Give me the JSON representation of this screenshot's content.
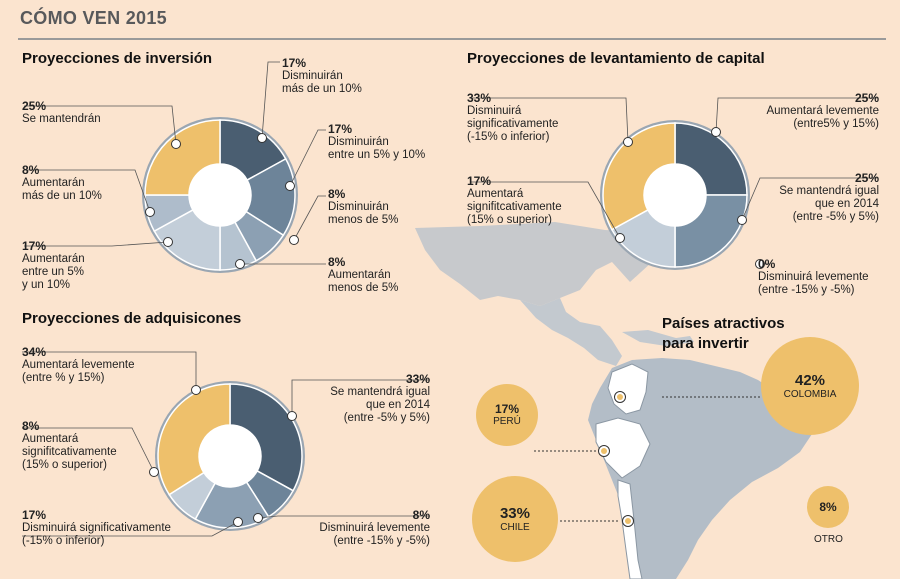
{
  "header": {
    "title": "CÓMO VEN 2015"
  },
  "colors": {
    "background": "#fbe4cf",
    "yellow": "#eec06b",
    "dark": "#4a5e71",
    "mid": "#7990a4",
    "light": "#c3ced9",
    "map": "#b3bdc7"
  },
  "chart_data": [
    {
      "type": "pie",
      "title": "Proyecciones de inversión",
      "slices": [
        {
          "value": 17,
          "pct_label": "17%",
          "label": "Disminuirán\nmás de un 10%",
          "color": "#4a5e71"
        },
        {
          "value": 17,
          "pct_label": "17%",
          "label": "Disminuirán\nentre un 5% y 10%",
          "color": "#6d8499"
        },
        {
          "value": 8,
          "pct_label": "8%",
          "label": "Disminuirán\nmenos de 5%",
          "color": "#8ca0b3"
        },
        {
          "value": 8,
          "pct_label": "8%",
          "label": "Aumentarán\nmenos de 5%",
          "color": "#b5c3d0"
        },
        {
          "value": 17,
          "pct_label": "17%",
          "label": "Aumentarán\nentre un 5%\ny un 10%",
          "color": "#c3ced9"
        },
        {
          "value": 8,
          "pct_label": "8%",
          "label": "Aumentarán\nmás de un 10%",
          "color": "#aebccb"
        },
        {
          "value": 25,
          "pct_label": "25%",
          "label": "Se mantendrán",
          "color": "#eec06b"
        }
      ]
    },
    {
      "type": "pie",
      "title": "Proyecciones de levantamiento de capital",
      "slices": [
        {
          "value": 25,
          "pct_label": "25%",
          "label": "Aumentará levemente\n(entre5% y 15%)",
          "color": "#4a5e71"
        },
        {
          "value": 25,
          "pct_label": "25%",
          "label": "Se mantendrá igual\nque en 2014\n(entre -5% y 5%)",
          "color": "#7990a4"
        },
        {
          "value": 0,
          "pct_label": "0%",
          "label": "Disminuirá levemente\n(entre -15% y -5%)",
          "color": "#7990a4"
        },
        {
          "value": 17,
          "pct_label": "17%",
          "label": "Aumentará\nsignifitcativamente\n(15% o superior)",
          "color": "#c3ced9"
        },
        {
          "value": 33,
          "pct_label": "33%",
          "label": "Disminuirá\nsignificativamente\n(-15% o inferior)",
          "color": "#eec06b"
        }
      ]
    },
    {
      "type": "pie",
      "title": "Proyecciones de adquisicones",
      "slices": [
        {
          "value": 33,
          "pct_label": "33%",
          "label": "Se mantendrá igual\nque en 2014\n(entre -5% y 5%)",
          "color": "#4a5e71"
        },
        {
          "value": 8,
          "pct_label": "8%",
          "label": "Disminuirá levemente\n(entre -15% y -5%)",
          "color": "#6d8499"
        },
        {
          "value": 17,
          "pct_label": "17%",
          "label": "Disminuirá significativamente\n(-15% o inferior)",
          "color": "#8ca0b3"
        },
        {
          "value": 8,
          "pct_label": "8%",
          "label": "Aumentará\nsignifitcativamente\n(15% o superior)",
          "color": "#c3ced9"
        },
        {
          "value": 34,
          "pct_label": "34%",
          "label": "Aumentará levemente\n(entre % y 15%)",
          "color": "#eec06b"
        }
      ]
    },
    {
      "type": "bubble",
      "title": "Países atractivos\npara invertir",
      "points": [
        {
          "name": "COLOMBIA",
          "value": 42,
          "pct_label": "42%"
        },
        {
          "name": "CHILE",
          "value": 33,
          "pct_label": "33%"
        },
        {
          "name": "PERÚ",
          "value": 17,
          "pct_label": "17%"
        },
        {
          "name": "OTRO",
          "value": 8,
          "pct_label": "8%"
        }
      ]
    }
  ]
}
